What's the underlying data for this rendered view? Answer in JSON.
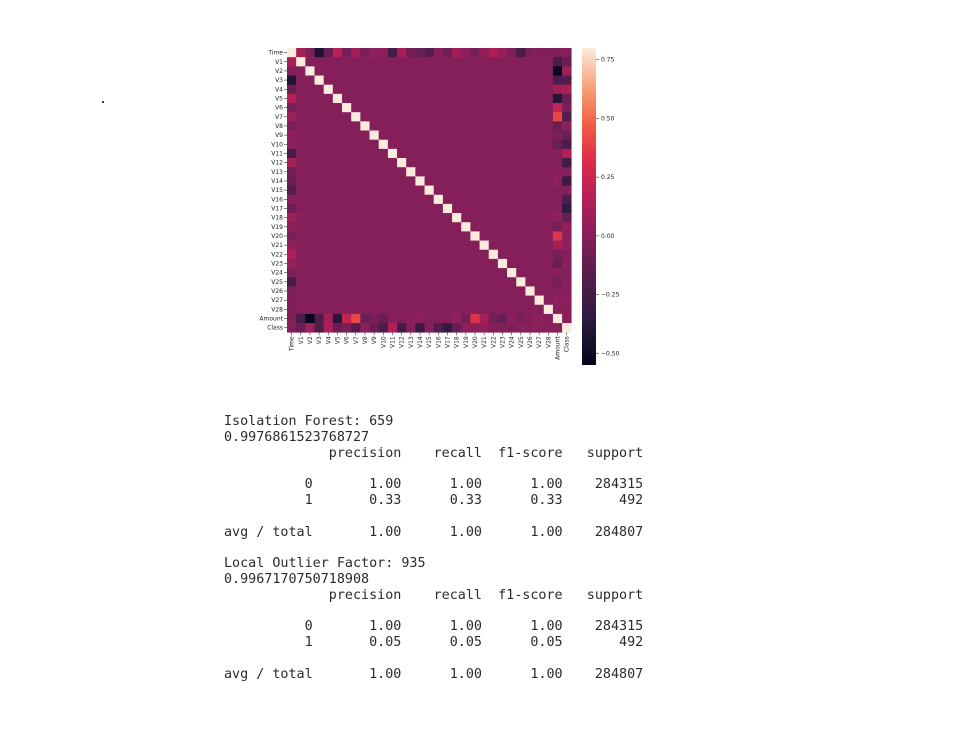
{
  "chart_data": {
    "type": "heatmap",
    "title": "",
    "xlabel": "",
    "ylabel": "",
    "labels": [
      "Time",
      "V1",
      "V2",
      "V3",
      "V4",
      "V5",
      "V6",
      "V7",
      "V8",
      "V9",
      "V10",
      "V11",
      "V12",
      "V13",
      "V14",
      "V15",
      "V16",
      "V17",
      "V18",
      "V19",
      "V20",
      "V21",
      "V22",
      "V23",
      "V24",
      "V25",
      "V26",
      "V27",
      "V28",
      "Amount",
      "Class"
    ],
    "matrix": [
      [
        1.0,
        0.12,
        -0.01,
        -0.42,
        -0.11,
        0.17,
        -0.06,
        0.08,
        -0.04,
        0.03,
        0.03,
        -0.25,
        0.12,
        -0.07,
        -0.1,
        -0.18,
        0.01,
        -0.07,
        0.09,
        0.03,
        -0.05,
        0.04,
        0.14,
        0.05,
        -0.02,
        -0.23,
        -0.04,
        -0.01,
        -0.01,
        -0.01,
        -0.01
      ],
      [
        0.12,
        1.0,
        0.0,
        0.0,
        0.0,
        0.0,
        0.0,
        0.0,
        0.0,
        0.0,
        0.0,
        0.0,
        0.0,
        0.0,
        0.0,
        0.0,
        0.0,
        0.0,
        0.0,
        0.0,
        0.0,
        0.0,
        0.0,
        0.0,
        0.0,
        0.0,
        0.0,
        0.0,
        0.0,
        -0.23,
        -0.1
      ],
      [
        -0.01,
        0.0,
        1.0,
        0.0,
        0.0,
        0.0,
        0.0,
        0.0,
        0.0,
        0.0,
        0.0,
        0.0,
        0.0,
        0.0,
        0.0,
        0.0,
        0.0,
        0.0,
        0.0,
        0.0,
        0.0,
        0.0,
        0.0,
        0.0,
        0.0,
        0.0,
        0.0,
        0.0,
        0.0,
        -0.53,
        0.09
      ],
      [
        -0.42,
        0.0,
        0.0,
        1.0,
        0.0,
        0.0,
        0.0,
        0.0,
        0.0,
        0.0,
        0.0,
        0.0,
        0.0,
        0.0,
        0.0,
        0.0,
        0.0,
        0.0,
        0.0,
        0.0,
        0.0,
        0.0,
        0.0,
        0.0,
        0.0,
        0.0,
        0.0,
        0.0,
        0.0,
        -0.21,
        -0.19
      ],
      [
        -0.11,
        0.0,
        0.0,
        0.0,
        1.0,
        0.0,
        0.0,
        0.0,
        0.0,
        0.0,
        0.0,
        0.0,
        0.0,
        0.0,
        0.0,
        0.0,
        0.0,
        0.0,
        0.0,
        0.0,
        0.0,
        0.0,
        0.0,
        0.0,
        0.0,
        0.0,
        0.0,
        0.0,
        0.0,
        0.1,
        0.13
      ],
      [
        0.17,
        0.0,
        0.0,
        0.0,
        0.0,
        1.0,
        0.0,
        0.0,
        0.0,
        0.0,
        0.0,
        0.0,
        0.0,
        0.0,
        0.0,
        0.0,
        0.0,
        0.0,
        0.0,
        0.0,
        0.0,
        0.0,
        0.0,
        0.0,
        0.0,
        0.0,
        0.0,
        0.0,
        0.0,
        -0.39,
        -0.09
      ],
      [
        -0.06,
        0.0,
        0.0,
        0.0,
        0.0,
        0.0,
        1.0,
        0.0,
        0.0,
        0.0,
        0.0,
        0.0,
        0.0,
        0.0,
        0.0,
        0.0,
        0.0,
        0.0,
        0.0,
        0.0,
        0.0,
        0.0,
        0.0,
        0.0,
        0.0,
        0.0,
        0.0,
        0.0,
        0.0,
        0.22,
        -0.04
      ],
      [
        0.08,
        0.0,
        0.0,
        0.0,
        0.0,
        0.0,
        0.0,
        1.0,
        0.0,
        0.0,
        0.0,
        0.0,
        0.0,
        0.0,
        0.0,
        0.0,
        0.0,
        0.0,
        0.0,
        0.0,
        0.0,
        0.0,
        0.0,
        0.0,
        0.0,
        0.0,
        0.0,
        0.0,
        0.0,
        0.4,
        -0.19
      ],
      [
        -0.04,
        0.0,
        0.0,
        0.0,
        0.0,
        0.0,
        0.0,
        0.0,
        1.0,
        0.0,
        0.0,
        0.0,
        0.0,
        0.0,
        0.0,
        0.0,
        0.0,
        0.0,
        0.0,
        0.0,
        0.0,
        0.0,
        0.0,
        0.0,
        0.0,
        0.0,
        0.0,
        0.0,
        0.0,
        -0.1,
        0.02
      ],
      [
        0.03,
        0.0,
        0.0,
        0.0,
        0.0,
        0.0,
        0.0,
        0.0,
        0.0,
        1.0,
        0.0,
        0.0,
        0.0,
        0.0,
        0.0,
        0.0,
        0.0,
        0.0,
        0.0,
        0.0,
        0.0,
        0.0,
        0.0,
        0.0,
        0.0,
        0.0,
        0.0,
        0.0,
        0.0,
        -0.04,
        -0.1
      ],
      [
        0.03,
        0.0,
        0.0,
        0.0,
        0.0,
        0.0,
        0.0,
        0.0,
        0.0,
        0.0,
        1.0,
        0.0,
        0.0,
        0.0,
        0.0,
        0.0,
        0.0,
        0.0,
        0.0,
        0.0,
        0.0,
        0.0,
        0.0,
        0.0,
        0.0,
        0.0,
        0.0,
        0.0,
        0.0,
        -0.1,
        -0.22
      ],
      [
        -0.25,
        0.0,
        0.0,
        0.0,
        0.0,
        0.0,
        0.0,
        0.0,
        0.0,
        0.0,
        0.0,
        1.0,
        0.0,
        0.0,
        0.0,
        0.0,
        0.0,
        0.0,
        0.0,
        0.0,
        0.0,
        0.0,
        0.0,
        0.0,
        0.0,
        0.0,
        0.0,
        0.0,
        0.0,
        0.0,
        0.15
      ],
      [
        0.12,
        0.0,
        0.0,
        0.0,
        0.0,
        0.0,
        0.0,
        0.0,
        0.0,
        0.0,
        0.0,
        0.0,
        1.0,
        0.0,
        0.0,
        0.0,
        0.0,
        0.0,
        0.0,
        0.0,
        0.0,
        0.0,
        0.0,
        0.0,
        0.0,
        0.0,
        0.0,
        0.0,
        0.0,
        -0.01,
        -0.26
      ],
      [
        -0.07,
        0.0,
        0.0,
        0.0,
        0.0,
        0.0,
        0.0,
        0.0,
        0.0,
        0.0,
        0.0,
        0.0,
        0.0,
        1.0,
        0.0,
        0.0,
        0.0,
        0.0,
        0.0,
        0.0,
        0.0,
        0.0,
        0.0,
        0.0,
        0.0,
        0.0,
        0.0,
        0.0,
        0.0,
        0.01,
        0.0
      ],
      [
        -0.1,
        0.0,
        0.0,
        0.0,
        0.0,
        0.0,
        0.0,
        0.0,
        0.0,
        0.0,
        0.0,
        0.0,
        0.0,
        0.0,
        1.0,
        0.0,
        0.0,
        0.0,
        0.0,
        0.0,
        0.0,
        0.0,
        0.0,
        0.0,
        0.0,
        0.0,
        0.0,
        0.0,
        0.0,
        0.03,
        -0.3
      ],
      [
        -0.18,
        0.0,
        0.0,
        0.0,
        0.0,
        0.0,
        0.0,
        0.0,
        0.0,
        0.0,
        0.0,
        0.0,
        0.0,
        0.0,
        0.0,
        1.0,
        0.0,
        0.0,
        0.0,
        0.0,
        0.0,
        0.0,
        0.0,
        0.0,
        0.0,
        0.0,
        0.0,
        0.0,
        0.0,
        -0.0,
        -0.0
      ],
      [
        0.01,
        0.0,
        0.0,
        0.0,
        0.0,
        0.0,
        0.0,
        0.0,
        0.0,
        0.0,
        0.0,
        0.0,
        0.0,
        0.0,
        0.0,
        0.0,
        1.0,
        0.0,
        0.0,
        0.0,
        0.0,
        0.0,
        0.0,
        0.0,
        0.0,
        0.0,
        0.0,
        0.0,
        0.0,
        -0.0,
        -0.2
      ],
      [
        -0.07,
        0.0,
        0.0,
        0.0,
        0.0,
        0.0,
        0.0,
        0.0,
        0.0,
        0.0,
        0.0,
        0.0,
        0.0,
        0.0,
        0.0,
        0.0,
        0.0,
        1.0,
        0.0,
        0.0,
        0.0,
        0.0,
        0.0,
        0.0,
        0.0,
        0.0,
        0.0,
        0.0,
        0.0,
        0.01,
        -0.33
      ],
      [
        0.09,
        0.0,
        0.0,
        0.0,
        0.0,
        0.0,
        0.0,
        0.0,
        0.0,
        0.0,
        0.0,
        0.0,
        0.0,
        0.0,
        0.0,
        0.0,
        0.0,
        0.0,
        1.0,
        0.0,
        0.0,
        0.0,
        0.0,
        0.0,
        0.0,
        0.0,
        0.0,
        0.0,
        0.0,
        0.04,
        -0.11
      ],
      [
        0.03,
        0.0,
        0.0,
        0.0,
        0.0,
        0.0,
        0.0,
        0.0,
        0.0,
        0.0,
        0.0,
        0.0,
        0.0,
        0.0,
        0.0,
        0.0,
        0.0,
        0.0,
        0.0,
        1.0,
        0.0,
        0.0,
        0.0,
        0.0,
        0.0,
        0.0,
        0.0,
        0.0,
        0.0,
        -0.06,
        0.03
      ],
      [
        -0.05,
        0.0,
        0.0,
        0.0,
        0.0,
        0.0,
        0.0,
        0.0,
        0.0,
        0.0,
        0.0,
        0.0,
        0.0,
        0.0,
        0.0,
        0.0,
        0.0,
        0.0,
        0.0,
        0.0,
        1.0,
        0.0,
        0.0,
        0.0,
        0.0,
        0.0,
        0.0,
        0.0,
        0.0,
        0.34,
        0.02
      ],
      [
        0.04,
        0.0,
        0.0,
        0.0,
        0.0,
        0.0,
        0.0,
        0.0,
        0.0,
        0.0,
        0.0,
        0.0,
        0.0,
        0.0,
        0.0,
        0.0,
        0.0,
        0.0,
        0.0,
        0.0,
        0.0,
        1.0,
        0.0,
        0.0,
        0.0,
        0.0,
        0.0,
        0.0,
        0.0,
        0.11,
        0.04
      ],
      [
        0.14,
        0.0,
        0.0,
        0.0,
        0.0,
        0.0,
        0.0,
        0.0,
        0.0,
        0.0,
        0.0,
        0.0,
        0.0,
        0.0,
        0.0,
        0.0,
        0.0,
        0.0,
        0.0,
        0.0,
        0.0,
        0.0,
        1.0,
        0.0,
        0.0,
        0.0,
        0.0,
        0.0,
        0.0,
        -0.06,
        0.0
      ],
      [
        0.05,
        0.0,
        0.0,
        0.0,
        0.0,
        0.0,
        0.0,
        0.0,
        0.0,
        0.0,
        0.0,
        0.0,
        0.0,
        0.0,
        0.0,
        0.0,
        0.0,
        0.0,
        0.0,
        0.0,
        0.0,
        0.0,
        0.0,
        1.0,
        0.0,
        0.0,
        0.0,
        0.0,
        0.0,
        -0.11,
        -0.0
      ],
      [
        -0.02,
        0.0,
        0.0,
        0.0,
        0.0,
        0.0,
        0.0,
        0.0,
        0.0,
        0.0,
        0.0,
        0.0,
        0.0,
        0.0,
        0.0,
        0.0,
        0.0,
        0.0,
        0.0,
        0.0,
        0.0,
        0.0,
        0.0,
        0.0,
        1.0,
        0.0,
        0.0,
        0.0,
        0.0,
        0.01,
        -0.01
      ],
      [
        -0.23,
        0.0,
        0.0,
        0.0,
        0.0,
        0.0,
        0.0,
        0.0,
        0.0,
        0.0,
        0.0,
        0.0,
        0.0,
        0.0,
        0.0,
        0.0,
        0.0,
        0.0,
        0.0,
        0.0,
        0.0,
        0.0,
        0.0,
        0.0,
        0.0,
        1.0,
        0.0,
        0.0,
        0.0,
        -0.05,
        0.01
      ],
      [
        -0.04,
        0.0,
        0.0,
        0.0,
        0.0,
        0.0,
        0.0,
        0.0,
        0.0,
        0.0,
        0.0,
        0.0,
        0.0,
        0.0,
        0.0,
        0.0,
        0.0,
        0.0,
        0.0,
        0.0,
        0.0,
        0.0,
        0.0,
        0.0,
        0.0,
        0.0,
        1.0,
        0.0,
        0.0,
        -0.0,
        0.0
      ],
      [
        -0.01,
        0.0,
        0.0,
        0.0,
        0.0,
        0.0,
        0.0,
        0.0,
        0.0,
        0.0,
        0.0,
        0.0,
        0.0,
        0.0,
        0.0,
        0.0,
        0.0,
        0.0,
        0.0,
        0.0,
        0.0,
        0.0,
        0.0,
        0.0,
        0.0,
        0.0,
        0.0,
        1.0,
        0.0,
        0.03,
        0.02
      ],
      [
        -0.01,
        0.0,
        0.0,
        0.0,
        0.0,
        0.0,
        0.0,
        0.0,
        0.0,
        0.0,
        0.0,
        0.0,
        0.0,
        0.0,
        0.0,
        0.0,
        0.0,
        0.0,
        0.0,
        0.0,
        0.0,
        0.0,
        0.0,
        0.0,
        0.0,
        0.0,
        0.0,
        0.0,
        1.0,
        0.01,
        0.01
      ],
      [
        -0.01,
        -0.23,
        -0.53,
        -0.21,
        0.1,
        -0.39,
        0.22,
        0.4,
        -0.1,
        -0.04,
        -0.1,
        0.0,
        -0.01,
        0.01,
        0.03,
        -0.0,
        -0.0,
        0.01,
        0.04,
        -0.06,
        0.34,
        0.11,
        -0.06,
        -0.11,
        0.01,
        -0.05,
        -0.0,
        0.03,
        0.01,
        1.0,
        0.01
      ],
      [
        -0.01,
        -0.1,
        0.09,
        -0.19,
        0.13,
        -0.09,
        -0.04,
        -0.19,
        0.02,
        -0.1,
        -0.22,
        0.15,
        -0.26,
        0.0,
        -0.3,
        -0.0,
        -0.2,
        -0.33,
        -0.11,
        0.03,
        0.02,
        0.04,
        0.0,
        -0.0,
        -0.01,
        0.01,
        0.0,
        0.02,
        0.01,
        0.01,
        1.0
      ]
    ],
    "colorbar": {
      "range": [
        -0.55,
        0.8
      ],
      "ticks": [
        0.75,
        0.5,
        0.25,
        0.0,
        -0.25,
        -0.5
      ],
      "tick_labels": [
        "0.75",
        "0.50",
        "0.25",
        "0.00",
        "−0.25",
        "−0.50"
      ]
    },
    "grid": false,
    "legend": "colorbar-right"
  },
  "report": {
    "lines": [
      "Isolation Forest: 659",
      "0.9976861523768727",
      "             precision    recall  f1-score   support",
      "",
      "          0       1.00      1.00      1.00    284315",
      "          1       0.33      0.33      0.33       492",
      "",
      "avg / total       1.00      1.00      1.00    284807",
      "",
      "Local Outlier Factor: 935",
      "0.9967170750718908",
      "             precision    recall  f1-score   support",
      "",
      "          0       1.00      1.00      1.00    284315",
      "          1       0.05      0.05      0.05       492",
      "",
      "avg / total       1.00      1.00      1.00    284807"
    ]
  }
}
